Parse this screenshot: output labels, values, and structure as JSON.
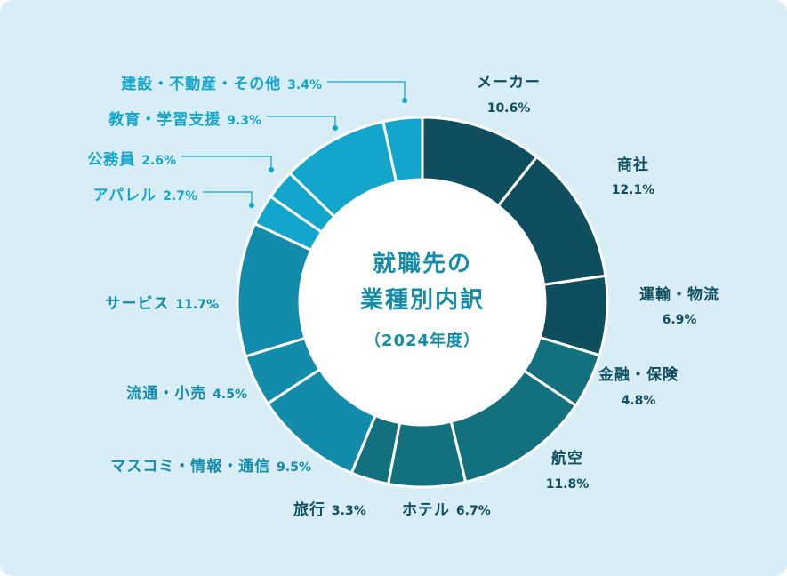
{
  "chart_data": {
    "type": "pie",
    "title": "就職先の業種別内訳",
    "title_lines": [
      "就職先の",
      "業種別内訳"
    ],
    "subtitle": "（2024年度）",
    "donut": true,
    "slices": [
      {
        "label": "メーカー",
        "value": 10.6,
        "value_text": "10.6%",
        "color": "#0e4e5e"
      },
      {
        "label": "商社",
        "value": 12.1,
        "value_text": "12.1%",
        "color": "#0e4e5e"
      },
      {
        "label": "運輸・物流",
        "value": 6.9,
        "value_text": "6.9%",
        "color": "#0e4e5e"
      },
      {
        "label": "金融・保険",
        "value": 4.8,
        "value_text": "4.8%",
        "color": "#12707f"
      },
      {
        "label": "航空",
        "value": 11.8,
        "value_text": "11.8%",
        "color": "#12707f"
      },
      {
        "label": "ホテル",
        "value": 6.7,
        "value_text": "6.7%",
        "color": "#12707f"
      },
      {
        "label": "旅行",
        "value": 3.3,
        "value_text": "3.3%",
        "color": "#12707f"
      },
      {
        "label": "マスコミ・情報・通信",
        "value": 9.5,
        "value_text": "9.5%",
        "color": "#138cab"
      },
      {
        "label": "流通・小売",
        "value": 4.5,
        "value_text": "4.5%",
        "color": "#138cab"
      },
      {
        "label": "サービス",
        "value": 11.7,
        "value_text": "11.7%",
        "color": "#138cab"
      },
      {
        "label": "アパレル",
        "value": 2.7,
        "value_text": "2.7%",
        "color": "#13a6cc"
      },
      {
        "label": "公務員",
        "value": 2.6,
        "value_text": "2.6%",
        "color": "#13a6cc"
      },
      {
        "label": "教育・学習支援",
        "value": 9.3,
        "value_text": "9.3%",
        "color": "#13a6cc"
      },
      {
        "label": "建設・不動産・その他",
        "value": 3.4,
        "value_text": "3.4%",
        "color": "#13a6cc"
      }
    ]
  }
}
